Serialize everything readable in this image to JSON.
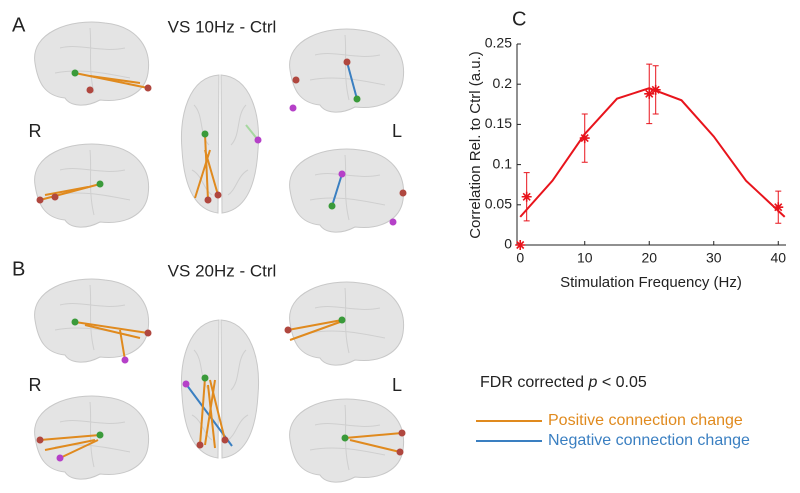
{
  "panel_a": {
    "label": "A",
    "title": "VS 10Hz - Ctrl",
    "right": "R",
    "left": "L"
  },
  "panel_b": {
    "label": "B",
    "title": "VS 20Hz - Ctrl",
    "right": "R",
    "left": "L"
  },
  "legend": {
    "title": "FDR corrected ",
    "title_italic": "p",
    "title_end": " < 0.05",
    "positive": "Positive connection change",
    "negative": "Negative connection change"
  },
  "chart_data": {
    "type": "scatter",
    "panel_label": "C",
    "xlabel": "Stimulation Frequency (Hz)",
    "ylabel": "Correlation Rel. to Ctrl (a.u.)",
    "x": [
      0,
      1,
      10,
      20,
      21,
      40
    ],
    "values": [
      0,
      0.06,
      0.133,
      0.188,
      0.193,
      0.047
    ],
    "errors": [
      0,
      0.03,
      0.03,
      0.037,
      0.03,
      0.02
    ],
    "color": "#e8141c",
    "fit": {
      "x": [
        0,
        5,
        10,
        15,
        20,
        25,
        30,
        35,
        41
      ],
      "values": [
        0.035,
        0.08,
        0.138,
        0.182,
        0.195,
        0.18,
        0.135,
        0.08,
        0.035
      ]
    },
    "xlim": [
      -0.5,
      41.2
    ],
    "ylim": [
      0,
      0.25
    ],
    "xticks": [
      0,
      10,
      20,
      30,
      40
    ],
    "yticks": [
      0,
      0.05,
      0.1,
      0.15,
      0.2,
      0.25
    ]
  }
}
